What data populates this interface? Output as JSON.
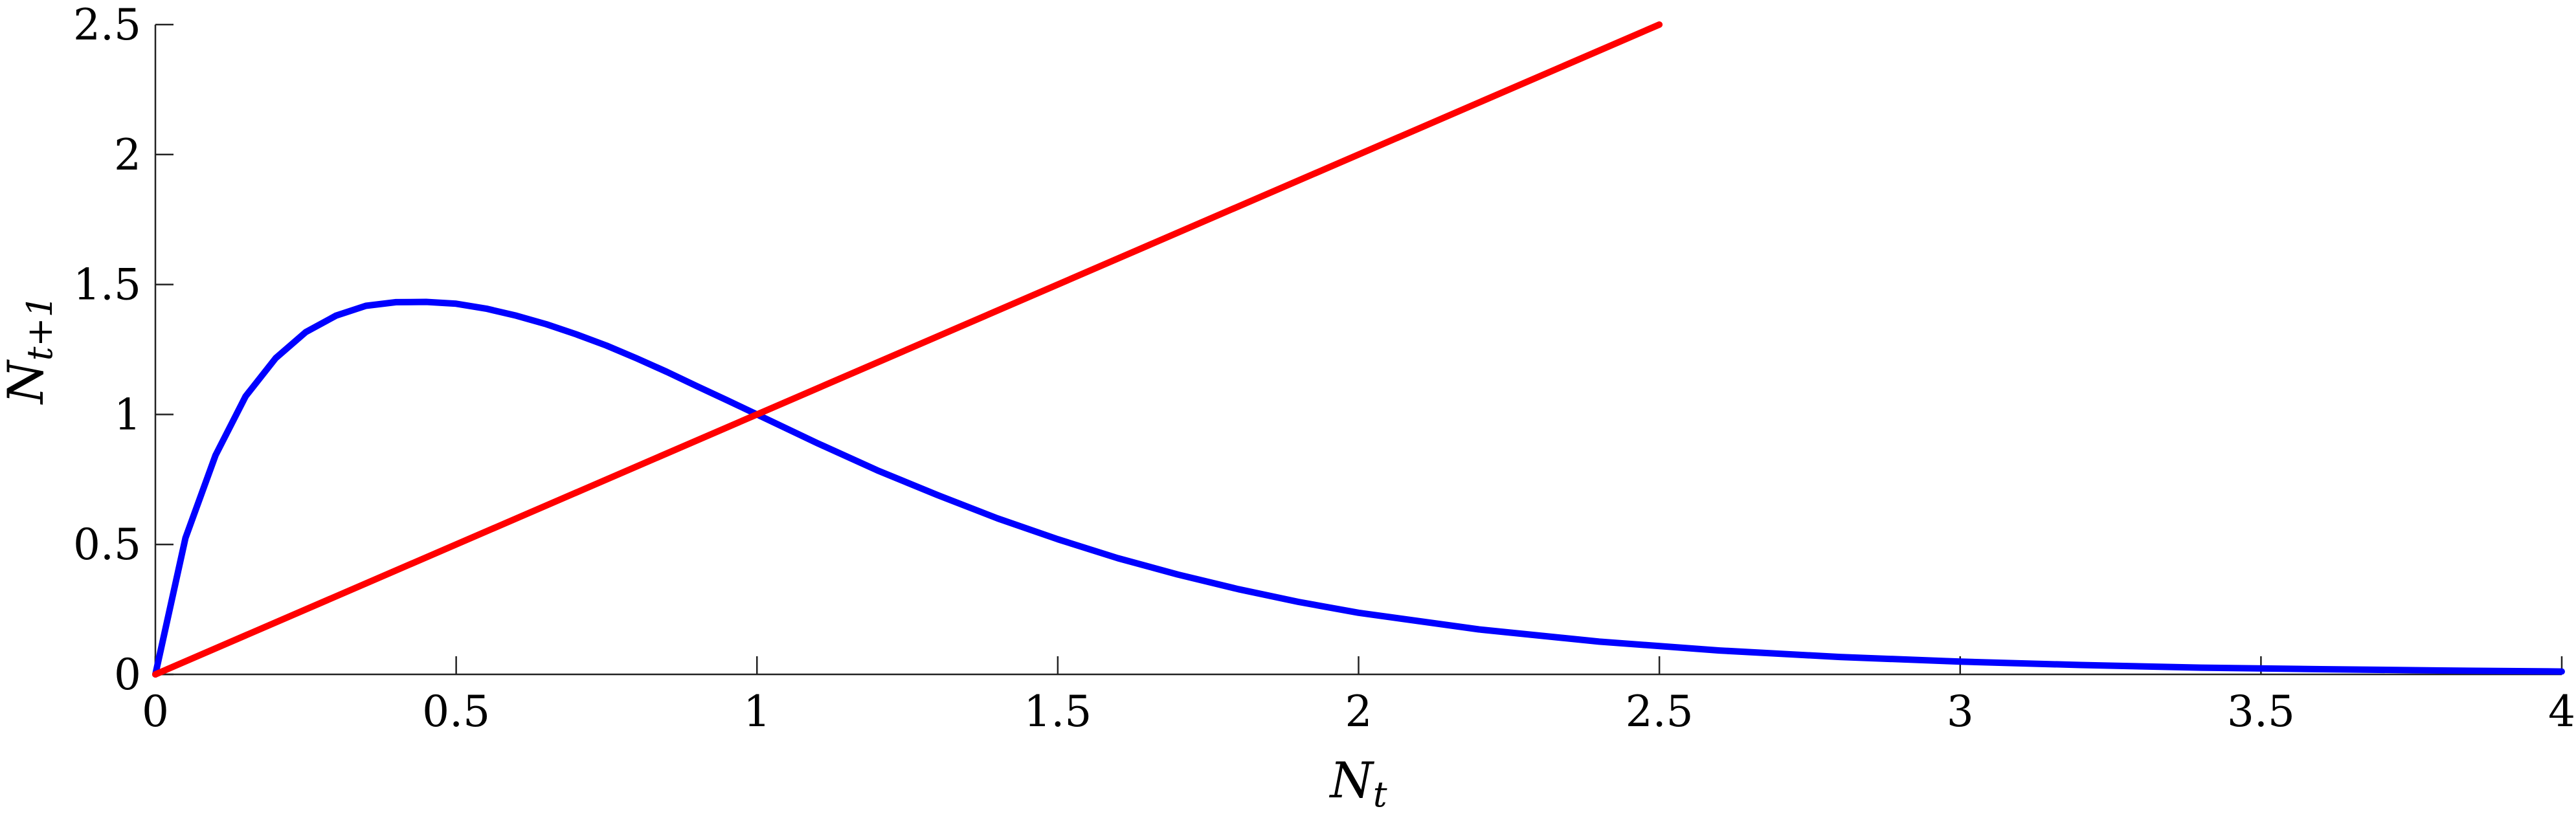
{
  "chart_data": {
    "type": "line",
    "title": "",
    "xlabel": {
      "main": "N",
      "sub": "t"
    },
    "ylabel": {
      "main": "N",
      "sub": "t+1"
    },
    "xlim": [
      0,
      4
    ],
    "ylim": [
      0,
      2.5
    ],
    "xticks": [
      0,
      0.5,
      1,
      1.5,
      2,
      2.5,
      3,
      3.5,
      4
    ],
    "xtick_labels": [
      "0",
      "0.5",
      "1",
      "1.5",
      "2",
      "2.5",
      "3",
      "3.5",
      "4"
    ],
    "yticks": [
      0,
      0.5,
      1,
      1.5,
      2,
      2.5
    ],
    "ytick_labels": [
      "0",
      "0.5",
      "1",
      "1.5",
      "2",
      "2.5"
    ],
    "grid": false,
    "legend": false,
    "series": [
      {
        "color": "#0000ff",
        "x": [
          0,
          0.05,
          0.1,
          0.15,
          0.2,
          0.25,
          0.3,
          0.35,
          0.4,
          0.45,
          0.5,
          0.55,
          0.6,
          0.65,
          0.7,
          0.75,
          0.8,
          0.85,
          0.9,
          0.95,
          1,
          1.1,
          1.2,
          1.3,
          1.4,
          1.5,
          1.6,
          1.7,
          1.8,
          1.9,
          2,
          2.2,
          2.4,
          2.6,
          2.8,
          3,
          3.2,
          3.4,
          3.6,
          3.8,
          4
        ],
        "y": [
          0,
          0.525,
          0.843,
          1.07,
          1.217,
          1.317,
          1.38,
          1.418,
          1.432,
          1.433,
          1.426,
          1.407,
          1.38,
          1.347,
          1.308,
          1.265,
          1.216,
          1.164,
          1.109,
          1.055,
          1.0,
          0.89,
          0.785,
          0.69,
          0.6,
          0.52,
          0.447,
          0.384,
          0.328,
          0.279,
          0.237,
          0.173,
          0.126,
          0.092,
          0.067,
          0.049,
          0.036,
          0.026,
          0.02,
          0.015,
          0.011
        ]
      },
      {
        "color": "#ff0000",
        "x": [
          0,
          2.5
        ],
        "y": [
          0,
          2.5
        ]
      }
    ]
  }
}
